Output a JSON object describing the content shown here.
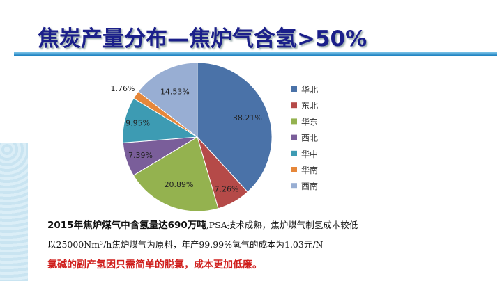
{
  "title": "焦炭产量分布—焦炉气含氢>50%",
  "chart_data": {
    "type": "pie",
    "categories": [
      "华北",
      "东北",
      "华东",
      "西北",
      "华中",
      "华南",
      "西南"
    ],
    "values": [
      38.21,
      7.26,
      20.89,
      7.39,
      9.95,
      1.76,
      14.53
    ],
    "labels": [
      "38.21%",
      "7.26%",
      "20.89%",
      "7.39%",
      "9.95%",
      "1.76%",
      "14.53%"
    ],
    "colors": [
      "#4a72a8",
      "#b54a48",
      "#94b24f",
      "#7a5e9a",
      "#3d9bb3",
      "#e6873a",
      "#98aed3"
    ],
    "legend_position": "right",
    "start": "12 o'clock clockwise"
  },
  "text": {
    "line1_bold": "2015年焦炉煤气中含氢量达690万吨",
    "line1_rest": ",PSA技术成熟，焦炉煤气制氢成本较低",
    "line2": "以25000Nm³/h焦炉煤气为原料，年产99.99%氢气的成本为1.03元/N",
    "line3": "氯碱的副产氢因只需简单的脱氯，成本更加低廉。"
  }
}
